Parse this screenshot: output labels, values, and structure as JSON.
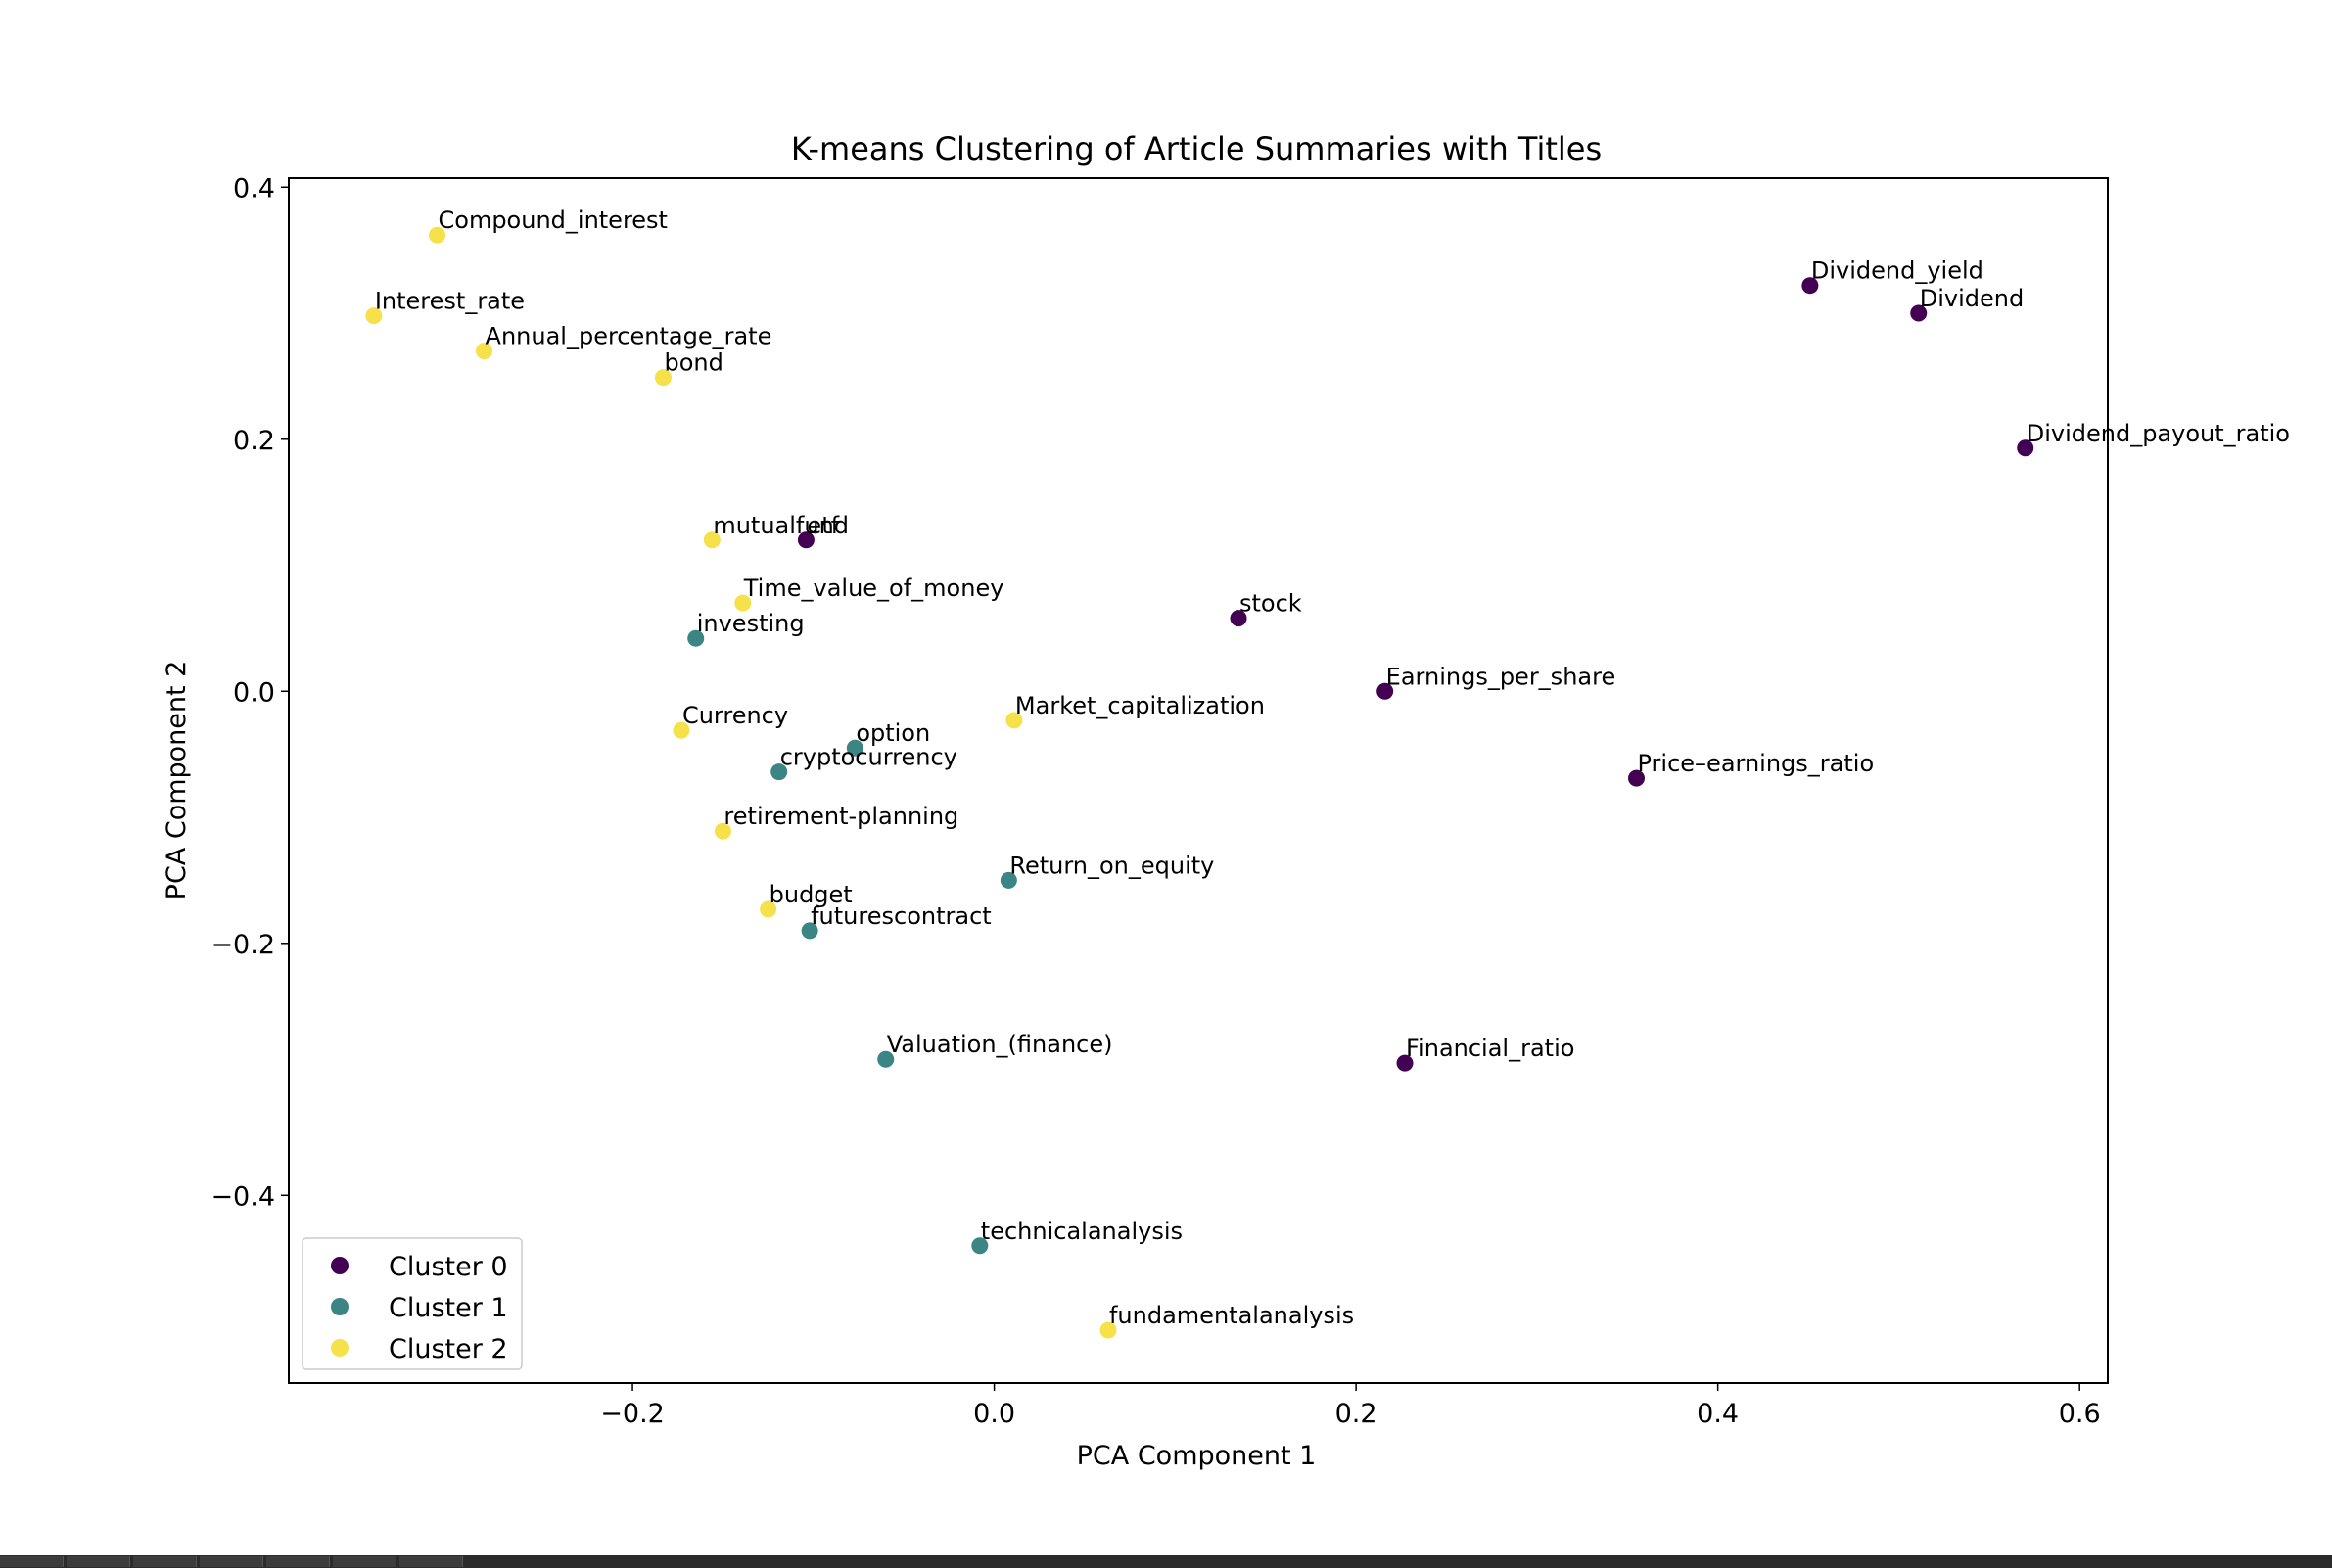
{
  "chart_data": {
    "type": "scatter",
    "title": "K-means Clustering of Article Summaries with Titles",
    "xlabel": "PCA Component 1",
    "ylabel": "PCA Component 2",
    "xlim": [
      -0.39,
      0.6156
    ],
    "ylim": [
      -0.5489,
      0.4072
    ],
    "xticks": [
      -0.2,
      0.0,
      0.2,
      0.4,
      0.6
    ],
    "xtick_labels": [
      "−0.2",
      "0.0",
      "0.2",
      "0.4",
      "0.6"
    ],
    "yticks": [
      -0.4,
      -0.2,
      0.0,
      0.2,
      0.4
    ],
    "ytick_labels": [
      "−0.4",
      "−0.2",
      "0.0",
      "0.2",
      "0.4"
    ],
    "grid": false,
    "legend": "lower left",
    "series": [
      {
        "name": "Cluster 0",
        "color": "#440154",
        "points": [
          {
            "label": "Dividend_yield",
            "x": 0.451,
            "y": 0.322
          },
          {
            "label": "Dividend",
            "x": 0.511,
            "y": 0.3
          },
          {
            "label": "Dividend_payout_ratio",
            "x": 0.57,
            "y": 0.193
          },
          {
            "label": "etf",
            "x": -0.104,
            "y": 0.12
          },
          {
            "label": "stock",
            "x": 0.135,
            "y": 0.058
          },
          {
            "label": "Earnings_per_share",
            "x": 0.216,
            "y": 0.0
          },
          {
            "label": "Price–earnings_ratio",
            "x": 0.355,
            "y": -0.069
          },
          {
            "label": "Financial_ratio",
            "x": 0.227,
            "y": -0.295
          }
        ]
      },
      {
        "name": "Cluster 1",
        "color": "#3b8585",
        "points": [
          {
            "label": "investing",
            "x": -0.165,
            "y": 0.042
          },
          {
            "label": "option",
            "x": -0.077,
            "y": -0.045
          },
          {
            "label": "cryptocurrency",
            "x": -0.119,
            "y": -0.064
          },
          {
            "label": "Return_on_equity",
            "x": 0.008,
            "y": -0.15
          },
          {
            "label": "futurescontract",
            "x": -0.102,
            "y": -0.19
          },
          {
            "label": "Valuation_(finance)",
            "x": -0.06,
            "y": -0.292
          },
          {
            "label": "technicalanalysis",
            "x": -0.008,
            "y": -0.44
          }
        ]
      },
      {
        "name": "Cluster 2",
        "color": "#f6e14b",
        "points": [
          {
            "label": "Compound_interest",
            "x": -0.308,
            "y": 0.362
          },
          {
            "label": "Interest_rate",
            "x": -0.343,
            "y": 0.298
          },
          {
            "label": "Annual_percentage_rate",
            "x": -0.282,
            "y": 0.27
          },
          {
            "label": "bond",
            "x": -0.183,
            "y": 0.249
          },
          {
            "label": "mutualfund",
            "x": -0.156,
            "y": 0.12
          },
          {
            "label": "Time_value_of_money",
            "x": -0.139,
            "y": 0.07
          },
          {
            "label": "Currency",
            "x": -0.173,
            "y": -0.031
          },
          {
            "label": "Market_capitalization",
            "x": 0.011,
            "y": -0.023
          },
          {
            "label": "retirement-planning",
            "x": -0.15,
            "y": -0.111
          },
          {
            "label": "budget",
            "x": -0.125,
            "y": -0.173
          },
          {
            "label": "fundamentalanalysis",
            "x": 0.063,
            "y": -0.507
          }
        ]
      }
    ]
  },
  "taskbar": {
    "buttons": 7
  }
}
